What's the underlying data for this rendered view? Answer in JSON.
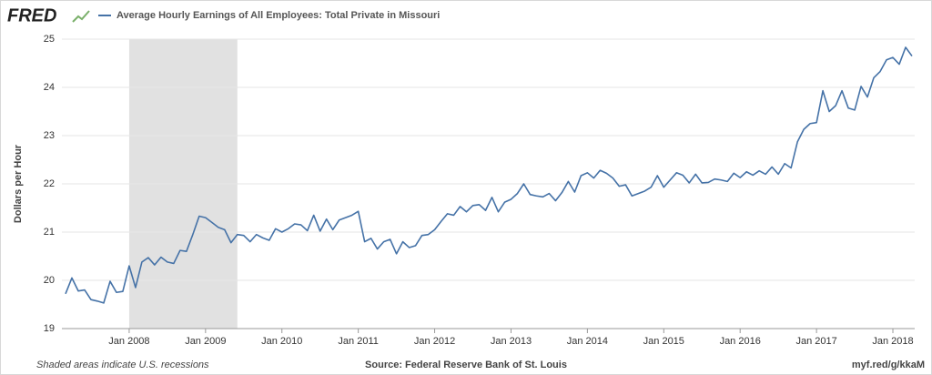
{
  "brand": "FRED",
  "chart_data": {
    "type": "line",
    "ylabel": "Dollars per Hour",
    "footnote": "Shaded areas indicate U.S. recessions",
    "source": "Source: Federal Reserve Bank of St. Louis",
    "link": "myf.red/g/kkaM",
    "x": [
      "2007-03",
      "2007-04",
      "2007-05",
      "2007-06",
      "2007-07",
      "2007-08",
      "2007-09",
      "2007-10",
      "2007-11",
      "2007-12",
      "2008-01",
      "2008-02",
      "2008-03",
      "2008-04",
      "2008-05",
      "2008-06",
      "2008-07",
      "2008-08",
      "2008-09",
      "2008-10",
      "2008-11",
      "2008-12",
      "2009-01",
      "2009-02",
      "2009-03",
      "2009-04",
      "2009-05",
      "2009-06",
      "2009-07",
      "2009-08",
      "2009-09",
      "2009-10",
      "2009-11",
      "2009-12",
      "2010-01",
      "2010-02",
      "2010-03",
      "2010-04",
      "2010-05",
      "2010-06",
      "2010-07",
      "2010-08",
      "2010-09",
      "2010-10",
      "2010-11",
      "2010-12",
      "2011-01",
      "2011-02",
      "2011-03",
      "2011-04",
      "2011-05",
      "2011-06",
      "2011-07",
      "2011-08",
      "2011-09",
      "2011-10",
      "2011-11",
      "2011-12",
      "2012-01",
      "2012-02",
      "2012-03",
      "2012-04",
      "2012-05",
      "2012-06",
      "2012-07",
      "2012-08",
      "2012-09",
      "2012-10",
      "2012-11",
      "2012-12",
      "2013-01",
      "2013-02",
      "2013-03",
      "2013-04",
      "2013-05",
      "2013-06",
      "2013-07",
      "2013-08",
      "2013-09",
      "2013-10",
      "2013-11",
      "2013-12",
      "2014-01",
      "2014-02",
      "2014-03",
      "2014-04",
      "2014-05",
      "2014-06",
      "2014-07",
      "2014-08",
      "2014-09",
      "2014-10",
      "2014-11",
      "2014-12",
      "2015-01",
      "2015-02",
      "2015-03",
      "2015-04",
      "2015-05",
      "2015-06",
      "2015-07",
      "2015-08",
      "2015-09",
      "2015-10",
      "2015-11",
      "2015-12",
      "2016-01",
      "2016-02",
      "2016-03",
      "2016-04",
      "2016-05",
      "2016-06",
      "2016-07",
      "2016-08",
      "2016-09",
      "2016-10",
      "2016-11",
      "2016-12",
      "2017-01",
      "2017-02",
      "2017-03",
      "2017-04",
      "2017-05",
      "2017-06",
      "2017-07",
      "2017-08",
      "2017-09",
      "2017-10",
      "2017-11",
      "2017-12",
      "2018-01",
      "2018-02",
      "2018-03",
      "2018-04"
    ],
    "series": [
      {
        "name": "Average Hourly Earnings of All Employees: Total Private in Missouri",
        "color": "#4572a7",
        "values": [
          19.72,
          20.05,
          19.78,
          19.8,
          19.6,
          19.57,
          19.53,
          19.98,
          19.75,
          19.77,
          20.3,
          19.85,
          20.38,
          20.47,
          20.32,
          20.48,
          20.38,
          20.35,
          20.62,
          20.6,
          20.95,
          21.33,
          21.3,
          21.2,
          21.1,
          21.05,
          20.78,
          20.95,
          20.93,
          20.8,
          20.95,
          20.88,
          20.83,
          21.07,
          21.0,
          21.07,
          21.17,
          21.15,
          21.03,
          21.35,
          21.02,
          21.27,
          21.05,
          21.25,
          21.3,
          21.35,
          21.43,
          20.8,
          20.87,
          20.65,
          20.8,
          20.85,
          20.55,
          20.8,
          20.68,
          20.72,
          20.93,
          20.95,
          21.05,
          21.22,
          21.38,
          21.35,
          21.53,
          21.42,
          21.55,
          21.57,
          21.45,
          21.72,
          21.42,
          21.62,
          21.68,
          21.8,
          22.0,
          21.78,
          21.75,
          21.73,
          21.8,
          21.65,
          21.82,
          22.05,
          21.83,
          22.17,
          22.23,
          22.12,
          22.28,
          22.22,
          22.12,
          21.95,
          21.98,
          21.75,
          21.8,
          21.85,
          21.93,
          22.17,
          21.93,
          22.08,
          22.23,
          22.18,
          22.02,
          22.2,
          22.02,
          22.03,
          22.1,
          22.08,
          22.05,
          22.22,
          22.13,
          22.25,
          22.18,
          22.27,
          22.2,
          22.35,
          22.2,
          22.42,
          22.33,
          22.87,
          23.13,
          23.25,
          23.27,
          23.93,
          23.5,
          23.62,
          23.93,
          23.57,
          23.53,
          24.02,
          23.8,
          24.2,
          24.33,
          24.57,
          24.62,
          24.48,
          24.83,
          24.65
        ]
      }
    ],
    "recessions": [
      [
        "2008-01",
        "2009-06"
      ]
    ],
    "xlim": [
      "2007-03",
      "2018-04"
    ],
    "xticks": [
      {
        "value": "2008-01",
        "label": "Jan 2008"
      },
      {
        "value": "2009-01",
        "label": "Jan 2009"
      },
      {
        "value": "2010-01",
        "label": "Jan 2010"
      },
      {
        "value": "2011-01",
        "label": "Jan 2011"
      },
      {
        "value": "2012-01",
        "label": "Jan 2012"
      },
      {
        "value": "2013-01",
        "label": "Jan 2013"
      },
      {
        "value": "2014-01",
        "label": "Jan 2014"
      },
      {
        "value": "2015-01",
        "label": "Jan 2015"
      },
      {
        "value": "2016-01",
        "label": "Jan 2016"
      },
      {
        "value": "2017-01",
        "label": "Jan 2017"
      },
      {
        "value": "2018-01",
        "label": "Jan 2018"
      }
    ],
    "ylim": [
      19,
      25
    ],
    "yticks": [
      19,
      20,
      21,
      22,
      23,
      24,
      25
    ],
    "grid": true
  }
}
